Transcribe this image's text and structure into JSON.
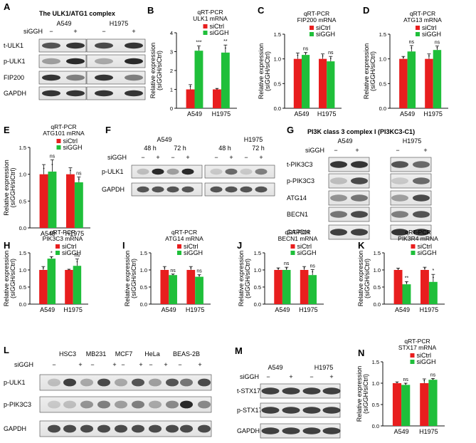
{
  "colors": {
    "siCtrl": "#e81e1e",
    "siGGH": "#1fbf3a",
    "axis": "#111111"
  },
  "panels": {
    "A": {
      "letter": "A",
      "title": "The ULK1/ATG1 complex",
      "lines": [
        "A549",
        "H1975"
      ],
      "sign_label": "siGGH",
      "signs": [
        "−",
        "+",
        "−",
        "+"
      ],
      "bands": [
        "t-ULK1",
        "p-ULK1",
        "FIP200",
        "GAPDH"
      ]
    },
    "F": {
      "letter": "F",
      "lines": [
        "A549",
        "H1975"
      ],
      "times": [
        "48 h",
        "72 h",
        "48 h",
        "72 h"
      ],
      "sign_label": "siGGH",
      "signs": [
        "−",
        "+",
        "−",
        "+",
        "−",
        "+",
        "−",
        "+"
      ],
      "bands": [
        "p-ULK1",
        "GAPDH"
      ]
    },
    "G": {
      "letter": "G",
      "title": "PI3K class 3 complex I (PI3KC3-C1)",
      "lines": [
        "A549",
        "H1975"
      ],
      "sign_label": "siGGH",
      "signs": [
        "−",
        "+",
        "−",
        "+"
      ],
      "bands": [
        "t-PIK3C3",
        "p-PIK3C3",
        "ATG14",
        "BECN1",
        "GAPDH"
      ]
    },
    "L": {
      "letter": "L",
      "lines": [
        "HSC3",
        "MB231",
        "MCF7",
        "HeLa",
        "BEAS-2B"
      ],
      "sign_label": "siGGH",
      "signs": [
        "−",
        "+",
        "−",
        "+",
        "−",
        "+",
        "−",
        "+",
        "−",
        "+"
      ],
      "bands": [
        "p-ULK1",
        "p-PIK3C3",
        "GAPDH"
      ]
    },
    "M": {
      "letter": "M",
      "lines": [
        "A549",
        "H1975"
      ],
      "sign_label": "siGGH",
      "signs": [
        "−",
        "+",
        "−",
        "+"
      ],
      "bands": [
        "t-STX17",
        "p-STX17",
        "GAPDH"
      ]
    }
  },
  "chart_data": [
    {
      "panel": "B",
      "type": "bar",
      "title": "qRT-PCR",
      "subtitle": "ULK1 mRNA",
      "ylabel": "Relative expression",
      "ylabel2": "(siGGH/siCtrl)",
      "categories": [
        "A549",
        "H1975"
      ],
      "ylim": [
        0,
        4
      ],
      "yticks": [
        "0",
        "1",
        "2",
        "3",
        "4"
      ],
      "legend": [
        "siCtrl",
        "siGGH"
      ],
      "series": [
        {
          "name": "siCtrl",
          "values": [
            1.0,
            1.0
          ]
        },
        {
          "name": "siGGH",
          "values": [
            3.05,
            2.95
          ]
        }
      ],
      "errors": [
        [
          0.25,
          0.05
        ],
        [
          0.25,
          0.4
        ]
      ],
      "sig": [
        [
          "",
          "***"
        ],
        [
          "",
          "**"
        ]
      ]
    },
    {
      "panel": "C",
      "type": "bar",
      "title": "qRT-PCR",
      "subtitle": "FIP200 mRNA",
      "ylabel": "Relative expression",
      "ylabel2": "(siGGH/siCtrl)",
      "categories": [
        "A549",
        "H1975"
      ],
      "ylim": [
        0,
        1.5
      ],
      "yticks": [
        "0.0",
        "0.5",
        "1.0",
        "1.5"
      ],
      "legend": [
        "siCtrl",
        "siGGH"
      ],
      "series": [
        {
          "name": "siCtrl",
          "values": [
            1.0,
            1.0
          ]
        },
        {
          "name": "siGGH",
          "values": [
            1.08,
            0.95
          ]
        }
      ],
      "errors": [
        [
          0.12,
          0.1
        ],
        [
          0.05,
          0.1
        ]
      ],
      "sig": [
        [
          "",
          "ns"
        ],
        [
          "",
          "ns"
        ]
      ]
    },
    {
      "panel": "D",
      "type": "bar",
      "title": "qRT-PCR",
      "subtitle": "ATG13 mRNA",
      "ylabel": "Relative expression",
      "ylabel2": "(siGGH/siCtrl)",
      "categories": [
        "A549",
        "H1975"
      ],
      "ylim": [
        0,
        1.5
      ],
      "yticks": [
        "0.0",
        "0.5",
        "1.0",
        "1.5"
      ],
      "legend": [
        "siCtrl",
        "siGGH"
      ],
      "series": [
        {
          "name": "siCtrl",
          "values": [
            1.0,
            1.0
          ]
        },
        {
          "name": "siGGH",
          "values": [
            1.15,
            1.18
          ]
        }
      ],
      "errors": [
        [
          0.05,
          0.1
        ],
        [
          0.12,
          0.08
        ]
      ],
      "sig": [
        [
          "",
          "ns"
        ],
        [
          "",
          "ns"
        ]
      ]
    },
    {
      "panel": "E",
      "type": "bar",
      "title": "qRT-PCR",
      "subtitle": "ATG101 mRNA",
      "ylabel": "Relative expression",
      "ylabel2": "(siGGH/siCtrl)",
      "categories": [
        "A549",
        "H1975"
      ],
      "ylim": [
        0,
        1.5
      ],
      "yticks": [
        "0.0",
        "0.5",
        "1.0",
        "1.5"
      ],
      "legend": [
        "siCtrl",
        "siGGH"
      ],
      "series": [
        {
          "name": "siCtrl",
          "values": [
            1.0,
            1.0
          ]
        },
        {
          "name": "siGGH",
          "values": [
            1.05,
            0.85
          ]
        }
      ],
      "errors": [
        [
          0.18,
          0.12
        ],
        [
          0.22,
          0.1
        ]
      ],
      "sig": [
        [
          "",
          "ns"
        ],
        [
          "",
          "ns"
        ]
      ]
    },
    {
      "panel": "H",
      "type": "bar",
      "title": "qRT-PCR",
      "subtitle": "PIK3C3 mRNA",
      "ylabel": "Relative expression",
      "ylabel2": "(siGGH/siCtrl)",
      "categories": [
        "A549",
        "H1975"
      ],
      "ylim": [
        0,
        1.5
      ],
      "yticks": [
        "0.0",
        "0.5",
        "1.0",
        "1.5"
      ],
      "legend": [
        "siCtrl",
        "siGGH"
      ],
      "series": [
        {
          "name": "siCtrl",
          "values": [
            1.0,
            1.0
          ]
        },
        {
          "name": "siGGH",
          "values": [
            1.33,
            1.12
          ]
        }
      ],
      "errors": [
        [
          0.1,
          0.02
        ],
        [
          0.06,
          0.2
        ]
      ],
      "sig": [
        [
          "",
          "*"
        ],
        [
          "",
          "ns"
        ]
      ]
    },
    {
      "panel": "I",
      "type": "bar",
      "title": "qRT-PCR",
      "subtitle": "ATG14 mRNA",
      "ylabel": "Relative expression",
      "ylabel2": "(siGGH/siCtrl)",
      "categories": [
        "A549",
        "H1975"
      ],
      "ylim": [
        0,
        1.5
      ],
      "yticks": [
        "0.0",
        "0.5",
        "1.0",
        "1.5"
      ],
      "legend": [
        "siCtrl",
        "siGGH"
      ],
      "series": [
        {
          "name": "siCtrl",
          "values": [
            1.0,
            1.0
          ]
        },
        {
          "name": "siGGH",
          "values": [
            0.85,
            0.8
          ]
        }
      ],
      "errors": [
        [
          0.1,
          0.1
        ],
        [
          0.03,
          0.06
        ]
      ],
      "sig": [
        [
          "",
          "ns"
        ],
        [
          "",
          "ns"
        ]
      ]
    },
    {
      "panel": "J",
      "type": "bar",
      "title": "qRT-PCR",
      "subtitle": "BECN1 mRNA",
      "ylabel": "Relative expression",
      "ylabel2": "(siGGH/siCtrl)",
      "categories": [
        "A549",
        "H1975"
      ],
      "ylim": [
        0,
        1.5
      ],
      "yticks": [
        "0.0",
        "0.5",
        "1.0",
        "1.5"
      ],
      "legend": [
        "siCtrl",
        "siGGH"
      ],
      "series": [
        {
          "name": "siCtrl",
          "values": [
            1.0,
            1.0
          ]
        },
        {
          "name": "siGGH",
          "values": [
            1.0,
            0.85
          ]
        }
      ],
      "errors": [
        [
          0.06,
          0.1
        ],
        [
          0.08,
          0.16
        ]
      ],
      "sig": [
        [
          "",
          "ns"
        ],
        [
          "",
          "ns"
        ]
      ]
    },
    {
      "panel": "K",
      "type": "bar",
      "title": "qRT-PCR",
      "subtitle": "PIK3R4 mRNA",
      "ylabel": "Relative expression",
      "ylabel2": "(siGGH/siCtrl)",
      "categories": [
        "A549",
        "H1975"
      ],
      "ylim": [
        0,
        1.5
      ],
      "yticks": [
        "0.0",
        "0.5",
        "1.0",
        "1.5"
      ],
      "legend": [
        "siCtrl",
        "siGGH"
      ],
      "series": [
        {
          "name": "siCtrl",
          "values": [
            1.0,
            1.0
          ]
        },
        {
          "name": "siGGH",
          "values": [
            0.58,
            0.65
          ]
        }
      ],
      "errors": [
        [
          0.05,
          0.08
        ],
        [
          0.08,
          0.22
        ]
      ],
      "sig": [
        [
          "",
          "**"
        ],
        [
          "",
          "*"
        ]
      ]
    },
    {
      "panel": "N",
      "type": "bar",
      "title": "qRT-PCR",
      "subtitle": "STX17 mRNA",
      "ylabel": "Relative expression",
      "ylabel2": "(siGGH/siCtrl)",
      "categories": [
        "A549",
        "H1975"
      ],
      "ylim": [
        0,
        1.5
      ],
      "yticks": [
        "0.0",
        "0.5",
        "1.0",
        "1.5"
      ],
      "legend": [
        "siCtrl",
        "siGGH"
      ],
      "series": [
        {
          "name": "siCtrl",
          "values": [
            1.0,
            1.0
          ]
        },
        {
          "name": "siGGH",
          "values": [
            0.96,
            1.08
          ]
        }
      ],
      "errors": [
        [
          0.03,
          0.1
        ],
        [
          0.04,
          0.03
        ]
      ],
      "sig": [
        [
          "",
          "ns"
        ],
        [
          "",
          "ns"
        ]
      ]
    }
  ]
}
